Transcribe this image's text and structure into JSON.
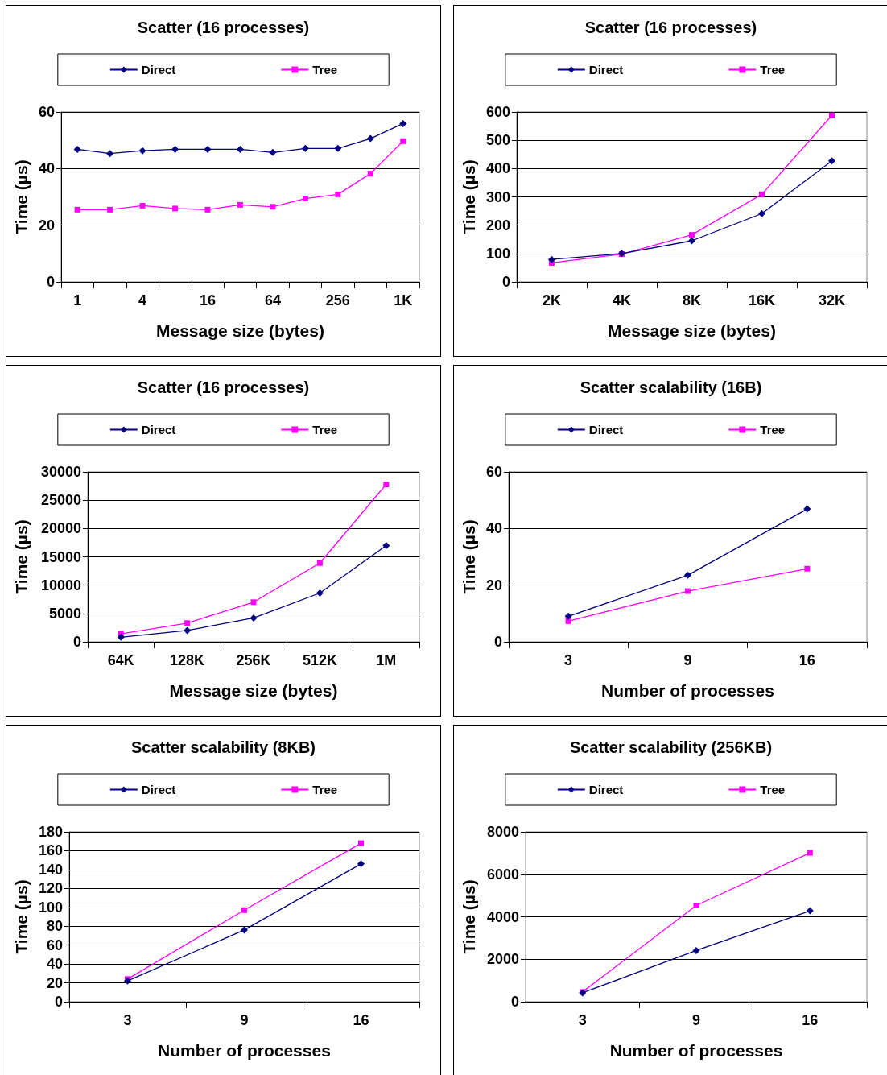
{
  "chart_data": [
    {
      "type": "line",
      "title": "Scatter (16 processes)",
      "xlabel": "Message size (bytes)",
      "ylabel": "Time (µs)",
      "categories": [
        "1",
        null,
        "4",
        null,
        "16",
        null,
        "64",
        null,
        "256",
        null,
        "1K"
      ],
      "ylim": [
        0,
        60
      ],
      "yticks": [
        0,
        20,
        40,
        60
      ],
      "grid": "y",
      "legend": "top",
      "series": [
        {
          "name": "Direct",
          "color": "#000080",
          "marker": "diamond",
          "values": [
            46.8,
            45.3,
            46.3,
            46.8,
            46.8,
            46.8,
            45.7,
            47.1,
            47.1,
            50.6,
            55.9
          ]
        },
        {
          "name": "Tree",
          "color": "#ff00ff",
          "marker": "square",
          "values": [
            25.5,
            25.5,
            26.9,
            25.9,
            25.5,
            27.2,
            26.5,
            29.4,
            30.9,
            38.2,
            49.7
          ]
        }
      ]
    },
    {
      "type": "line",
      "title": "Scatter (16 processes)",
      "xlabel": "Message size (bytes)",
      "ylabel": "Time (µs)",
      "categories": [
        "2K",
        "4K",
        "8K",
        "16K",
        "32K"
      ],
      "ylim": [
        0,
        600
      ],
      "yticks": [
        0,
        100,
        200,
        300,
        400,
        500,
        600
      ],
      "grid": "y",
      "legend": "top",
      "series": [
        {
          "name": "Direct",
          "color": "#000080",
          "marker": "diamond",
          "values": [
            79,
            100,
            145,
            241,
            427
          ]
        },
        {
          "name": "Tree",
          "color": "#ff00ff",
          "marker": "square",
          "values": [
            67,
            98,
            166,
            309,
            588
          ]
        }
      ]
    },
    {
      "type": "line",
      "title": "Scatter (16 processes)",
      "xlabel": "Message size (bytes)",
      "ylabel": "Time (µs)",
      "categories": [
        "64K",
        "128K",
        "256K",
        "512K",
        "1M"
      ],
      "ylim": [
        0,
        30000
      ],
      "yticks": [
        0,
        5000,
        10000,
        15000,
        20000,
        25000,
        30000
      ],
      "grid": "y",
      "legend": "top",
      "series": [
        {
          "name": "Direct",
          "color": "#000080",
          "marker": "diamond",
          "values": [
            800,
            2000,
            4200,
            8600,
            17000
          ]
        },
        {
          "name": "Tree",
          "color": "#ff00ff",
          "marker": "square",
          "values": [
            1400,
            3300,
            7000,
            13900,
            27800
          ]
        }
      ]
    },
    {
      "type": "line",
      "title": "Scatter scalability (16B)",
      "xlabel": "Number of processes",
      "ylabel": "Time (µs)",
      "categories": [
        "3",
        "9",
        "16"
      ],
      "ylim": [
        0,
        60
      ],
      "yticks": [
        0,
        20,
        40,
        60
      ],
      "grid": "y",
      "legend": "top",
      "series": [
        {
          "name": "Direct",
          "color": "#000080",
          "marker": "diamond",
          "values": [
            9.0,
            23.5,
            46.9
          ]
        },
        {
          "name": "Tree",
          "color": "#ff00ff",
          "marker": "square",
          "values": [
            7.3,
            17.9,
            25.8
          ]
        }
      ]
    },
    {
      "type": "line",
      "title": "Scatter scalability (8KB)",
      "xlabel": "Number of processes",
      "ylabel": "Time (µs)",
      "categories": [
        "3",
        "9",
        "16"
      ],
      "ylim": [
        0,
        180
      ],
      "yticks": [
        0,
        20,
        40,
        60,
        80,
        100,
        120,
        140,
        160,
        180
      ],
      "grid": "y",
      "legend": "top",
      "series": [
        {
          "name": "Direct",
          "color": "#000080",
          "marker": "diamond",
          "values": [
            22,
            76,
            146
          ]
        },
        {
          "name": "Tree",
          "color": "#ff00ff",
          "marker": "square",
          "values": [
            24,
            97,
            168
          ]
        }
      ]
    },
    {
      "type": "line",
      "title": "Scatter scalability (256KB)",
      "xlabel": "Number of processes",
      "ylabel": "Time (µs)",
      "categories": [
        "3",
        "9",
        "16"
      ],
      "ylim": [
        0,
        8000
      ],
      "yticks": [
        0,
        2000,
        4000,
        6000,
        8000
      ],
      "grid": "y",
      "legend": "top",
      "series": [
        {
          "name": "Direct",
          "color": "#000080",
          "marker": "diamond",
          "values": [
            420,
            2410,
            4280
          ]
        },
        {
          "name": "Tree",
          "color": "#ff00ff",
          "marker": "square",
          "values": [
            460,
            4530,
            7010
          ]
        }
      ]
    }
  ]
}
